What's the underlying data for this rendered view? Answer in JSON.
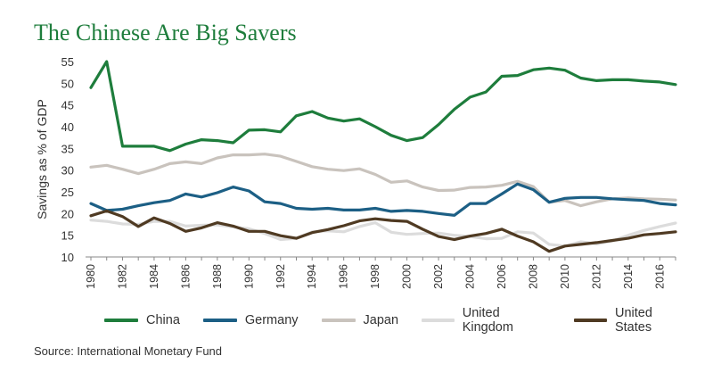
{
  "title": "The Chinese Are Big Savers",
  "source": "Source: International Monetary Fund",
  "chart_data": {
    "type": "line",
    "ylabel": "Savings as % of GDP",
    "xlabel": "",
    "ylim": [
      10,
      55
    ],
    "yticks": [
      10,
      15,
      20,
      25,
      30,
      35,
      40,
      45,
      50,
      55
    ],
    "xlim": [
      1980,
      2017
    ],
    "xticks": [
      "1980",
      "1982",
      "1984",
      "1986",
      "1988",
      "1990",
      "1992",
      "1994",
      "1996",
      "1998",
      "2000",
      "2002",
      "2004",
      "2006",
      "2008",
      "2010",
      "2012",
      "2014",
      "2016"
    ],
    "legend_position": "bottom",
    "grid": false,
    "x": [
      1980,
      1981,
      1982,
      1983,
      1984,
      1985,
      1986,
      1987,
      1988,
      1989,
      1990,
      1991,
      1992,
      1993,
      1994,
      1995,
      1996,
      1997,
      1998,
      1999,
      2000,
      2001,
      2002,
      2003,
      2004,
      2005,
      2006,
      2007,
      2008,
      2009,
      2010,
      2011,
      2012,
      2013,
      2014,
      2015,
      2016,
      2017
    ],
    "series": [
      {
        "name": "China",
        "color": "#1e7d3c",
        "values": [
          49,
          55,
          35.5,
          35.5,
          35.5,
          34.5,
          36,
          37,
          36.8,
          36.3,
          39.2,
          39.3,
          38.8,
          42.5,
          43.5,
          42,
          41.3,
          41.8,
          40,
          38,
          36.8,
          37.5,
          40.5,
          44,
          46.8,
          48,
          51.6,
          51.8,
          53.1,
          53.5,
          53,
          51.2,
          50.6,
          50.8,
          50.8,
          50.5,
          50.3,
          49.7
        ]
      },
      {
        "name": "Germany",
        "color": "#1c5f85",
        "values": [
          22.3,
          20.7,
          21,
          21.8,
          22.5,
          23,
          24.5,
          23.8,
          24.8,
          26.1,
          25.2,
          22.7,
          22.3,
          21.2,
          21,
          21.2,
          20.8,
          20.8,
          21.2,
          20.5,
          20.7,
          20.5,
          20,
          19.6,
          22.3,
          22.3,
          24.5,
          26.8,
          25.5,
          22.6,
          23.5,
          23.7,
          23.7,
          23.4,
          23.2,
          23,
          22.3,
          22
        ]
      },
      {
        "name": "Japan",
        "color": "#c9c3bd",
        "values": [
          30.7,
          31.1,
          30.2,
          29.2,
          30.2,
          31.5,
          31.9,
          31.5,
          32.8,
          33.5,
          33.5,
          33.7,
          33.2,
          32,
          30.8,
          30.2,
          29.9,
          30.3,
          29,
          27.2,
          27.5,
          26.1,
          25.3,
          25.4,
          26,
          26.1,
          26.5,
          27.4,
          26.2,
          22.6,
          23,
          21.8,
          22.7,
          23.4,
          23.6,
          23.4,
          23.3,
          23.1
        ]
      },
      {
        "name": "United Kingdom",
        "color": "#dcdcdc",
        "values": [
          18.5,
          18.2,
          17.6,
          17.5,
          18.2,
          18.2,
          17.1,
          17.3,
          17.4,
          16.9,
          16.5,
          15.4,
          14,
          14.3,
          15.8,
          16,
          15.8,
          17,
          17.9,
          15.7,
          15.2,
          15.4,
          15.5,
          15,
          14.7,
          14.2,
          14.3,
          15.8,
          15.5,
          12.9,
          12.5,
          13.5,
          13,
          13.7,
          15,
          16.1,
          17,
          17.8
        ]
      },
      {
        "name": "United States",
        "color": "#4f3a22",
        "values": [
          19.5,
          20.6,
          19.3,
          17,
          19,
          17.7,
          15.9,
          16.7,
          17.9,
          17.1,
          15.9,
          15.9,
          14.9,
          14.3,
          15.6,
          16.3,
          17.2,
          18.3,
          18.8,
          18.4,
          18.2,
          16.4,
          14.7,
          14,
          14.8,
          15.4,
          16.4,
          14.8,
          13.5,
          11.3,
          12.5,
          12.9,
          13.3,
          13.8,
          14.3,
          15.1,
          15.4,
          15.8
        ]
      }
    ]
  }
}
